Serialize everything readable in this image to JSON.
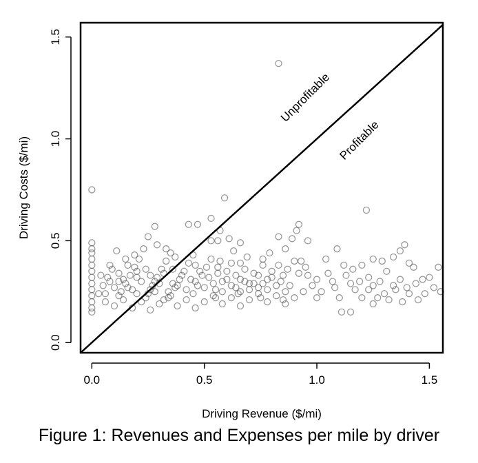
{
  "caption": "Figure 1: Revenues and Expenses per mile by driver",
  "chart_data": {
    "type": "scatter",
    "xlabel": "Driving Revenue ($/mi)",
    "ylabel": "Driving Costs ($/mi)",
    "xlim": [
      -0.05,
      1.56
    ],
    "ylim": [
      -0.05,
      1.57
    ],
    "xticks": [
      0.0,
      0.5,
      1.0,
      1.5
    ],
    "xtick_labels": [
      "0.0",
      "0.5",
      "1.0",
      "1.5"
    ],
    "yticks": [
      0.0,
      0.5,
      1.0,
      1.5
    ],
    "ytick_labels": [
      "0.0",
      "0.5",
      "1.0",
      "1.5"
    ],
    "grid": false,
    "marker": "open circle",
    "marker_color": "#555555",
    "reference_line": {
      "description": "y = x",
      "from": [
        -0.05,
        -0.05
      ],
      "to": [
        1.56,
        1.56
      ]
    },
    "annotations": [
      {
        "text": "Unprofitable",
        "x": 0.96,
        "y": 1.19,
        "rotation": -45
      },
      {
        "text": "Profitable",
        "x": 1.2,
        "y": 0.98,
        "rotation": -45
      }
    ],
    "points": [
      [
        0.83,
        1.37
      ],
      [
        0.0,
        0.75
      ],
      [
        0.59,
        0.71
      ],
      [
        1.22,
        0.65
      ],
      [
        0.28,
        0.57
      ],
      [
        0.43,
        0.58
      ],
      [
        0.47,
        0.58
      ],
      [
        0.53,
        0.61
      ],
      [
        0.57,
        0.55
      ],
      [
        0.92,
        0.58
      ],
      [
        0.91,
        0.55
      ],
      [
        0.89,
        0.51
      ],
      [
        0.83,
        0.52
      ],
      [
        0.96,
        0.5
      ],
      [
        0.53,
        0.5
      ],
      [
        0.61,
        0.51
      ],
      [
        0.56,
        0.5
      ],
      [
        0.66,
        0.49
      ],
      [
        0.25,
        0.52
      ],
      [
        0.0,
        0.49
      ],
      [
        0.0,
        0.46
      ],
      [
        0.0,
        0.44
      ],
      [
        0.0,
        0.41
      ],
      [
        0.0,
        0.38
      ],
      [
        0.0,
        0.35
      ],
      [
        0.0,
        0.32
      ],
      [
        0.0,
        0.29
      ],
      [
        0.0,
        0.26
      ],
      [
        0.0,
        0.23
      ],
      [
        0.0,
        0.2
      ],
      [
        0.0,
        0.17
      ],
      [
        0.0,
        0.15
      ],
      [
        1.09,
        0.46
      ],
      [
        1.39,
        0.48
      ],
      [
        1.37,
        0.45
      ],
      [
        1.34,
        0.42
      ],
      [
        1.41,
        0.39
      ],
      [
        1.29,
        0.4
      ],
      [
        1.43,
        0.37
      ],
      [
        1.25,
        0.41
      ],
      [
        1.2,
        0.38
      ],
      [
        1.16,
        0.36
      ],
      [
        1.12,
        0.38
      ],
      [
        1.04,
        0.41
      ],
      [
        1.05,
        0.34
      ],
      [
        1.0,
        0.31
      ],
      [
        0.98,
        0.28
      ],
      [
        1.08,
        0.27
      ],
      [
        1.02,
        0.25
      ],
      [
        1.0,
        0.22
      ],
      [
        1.1,
        0.22
      ],
      [
        1.11,
        0.15
      ],
      [
        1.15,
        0.15
      ],
      [
        1.17,
        0.26
      ],
      [
        1.2,
        0.22
      ],
      [
        1.23,
        0.26
      ],
      [
        1.25,
        0.19
      ],
      [
        1.27,
        0.22
      ],
      [
        1.3,
        0.24
      ],
      [
        1.32,
        0.21
      ],
      [
        1.35,
        0.26
      ],
      [
        1.38,
        0.2
      ],
      [
        1.41,
        0.24
      ],
      [
        1.45,
        0.21
      ],
      [
        1.48,
        0.24
      ],
      [
        1.52,
        0.27
      ],
      [
        1.55,
        0.25
      ],
      [
        1.54,
        0.37
      ],
      [
        1.5,
        0.32
      ],
      [
        1.47,
        0.31
      ],
      [
        1.44,
        0.29
      ],
      [
        1.4,
        0.27
      ],
      [
        1.37,
        0.31
      ],
      [
        1.34,
        0.28
      ],
      [
        1.31,
        0.35
      ],
      [
        1.28,
        0.3
      ],
      [
        1.25,
        0.28
      ],
      [
        1.23,
        0.32
      ],
      [
        1.19,
        0.3
      ],
      [
        1.15,
        0.29
      ],
      [
        1.13,
        0.33
      ],
      [
        1.07,
        0.3
      ],
      [
        0.95,
        0.37
      ],
      [
        0.92,
        0.34
      ],
      [
        0.93,
        0.4
      ],
      [
        0.9,
        0.4
      ],
      [
        0.87,
        0.36
      ],
      [
        0.85,
        0.33
      ],
      [
        0.83,
        0.38
      ],
      [
        0.8,
        0.35
      ],
      [
        0.78,
        0.31
      ],
      [
        0.76,
        0.38
      ],
      [
        0.74,
        0.33
      ],
      [
        0.72,
        0.29
      ],
      [
        0.7,
        0.26
      ],
      [
        0.68,
        0.36
      ],
      [
        0.66,
        0.31
      ],
      [
        0.64,
        0.27
      ],
      [
        0.62,
        0.39
      ],
      [
        0.6,
        0.35
      ],
      [
        0.58,
        0.3
      ],
      [
        0.55,
        0.26
      ],
      [
        0.53,
        0.41
      ],
      [
        0.51,
        0.37
      ],
      [
        0.49,
        0.33
      ],
      [
        0.47,
        0.28
      ],
      [
        0.45,
        0.43
      ],
      [
        0.43,
        0.39
      ],
      [
        0.41,
        0.35
      ],
      [
        0.39,
        0.31
      ],
      [
        0.37,
        0.27
      ],
      [
        0.35,
        0.44
      ],
      [
        0.33,
        0.4
      ],
      [
        0.31,
        0.36
      ],
      [
        0.29,
        0.32
      ],
      [
        0.27,
        0.28
      ],
      [
        0.25,
        0.24
      ],
      [
        0.23,
        0.46
      ],
      [
        0.21,
        0.41
      ],
      [
        0.19,
        0.37
      ],
      [
        0.17,
        0.33
      ],
      [
        0.15,
        0.29
      ],
      [
        0.13,
        0.25
      ],
      [
        0.11,
        0.45
      ],
      [
        0.09,
        0.36
      ],
      [
        0.07,
        0.32
      ],
      [
        0.05,
        0.28
      ],
      [
        0.03,
        0.24
      ],
      [
        0.06,
        0.2
      ],
      [
        0.1,
        0.18
      ],
      [
        0.14,
        0.21
      ],
      [
        0.18,
        0.17
      ],
      [
        0.22,
        0.2
      ],
      [
        0.26,
        0.16
      ],
      [
        0.3,
        0.19
      ],
      [
        0.34,
        0.22
      ],
      [
        0.38,
        0.18
      ],
      [
        0.42,
        0.21
      ],
      [
        0.46,
        0.17
      ],
      [
        0.5,
        0.2
      ],
      [
        0.54,
        0.23
      ],
      [
        0.58,
        0.19
      ],
      [
        0.62,
        0.22
      ],
      [
        0.66,
        0.18
      ],
      [
        0.7,
        0.21
      ],
      [
        0.74,
        0.24
      ],
      [
        0.78,
        0.2
      ],
      [
        0.82,
        0.23
      ],
      [
        0.86,
        0.19
      ],
      [
        0.9,
        0.22
      ],
      [
        0.94,
        0.25
      ],
      [
        0.08,
        0.3
      ],
      [
        0.12,
        0.34
      ],
      [
        0.16,
        0.38
      ],
      [
        0.2,
        0.32
      ],
      [
        0.24,
        0.36
      ],
      [
        0.28,
        0.3
      ],
      [
        0.32,
        0.34
      ],
      [
        0.36,
        0.29
      ],
      [
        0.4,
        0.33
      ],
      [
        0.44,
        0.31
      ],
      [
        0.48,
        0.35
      ],
      [
        0.52,
        0.32
      ],
      [
        0.56,
        0.34
      ],
      [
        0.6,
        0.31
      ],
      [
        0.64,
        0.33
      ],
      [
        0.68,
        0.3
      ],
      [
        0.72,
        0.34
      ],
      [
        0.76,
        0.29
      ],
      [
        0.8,
        0.32
      ],
      [
        0.84,
        0.3
      ],
      [
        0.88,
        0.28
      ],
      [
        0.1,
        0.27
      ],
      [
        0.14,
        0.31
      ],
      [
        0.18,
        0.26
      ],
      [
        0.22,
        0.3
      ],
      [
        0.26,
        0.26
      ],
      [
        0.3,
        0.29
      ],
      [
        0.34,
        0.25
      ],
      [
        0.38,
        0.28
      ],
      [
        0.42,
        0.26
      ],
      [
        0.46,
        0.3
      ],
      [
        0.5,
        0.27
      ],
      [
        0.54,
        0.29
      ],
      [
        0.58,
        0.25
      ],
      [
        0.62,
        0.28
      ],
      [
        0.66,
        0.25
      ],
      [
        0.7,
        0.29
      ],
      [
        0.74,
        0.27
      ],
      [
        0.78,
        0.26
      ],
      [
        0.82,
        0.28
      ],
      [
        0.86,
        0.25
      ],
      [
        0.15,
        0.41
      ],
      [
        0.19,
        0.43
      ],
      [
        0.29,
        0.48
      ],
      [
        0.33,
        0.46
      ],
      [
        0.37,
        0.42
      ],
      [
        0.57,
        0.4
      ],
      [
        0.63,
        0.45
      ],
      [
        0.69,
        0.42
      ],
      [
        0.79,
        0.44
      ],
      [
        0.86,
        0.46
      ],
      [
        0.35,
        0.23
      ],
      [
        0.45,
        0.24
      ],
      [
        0.55,
        0.22
      ],
      [
        0.65,
        0.24
      ],
      [
        0.75,
        0.22
      ],
      [
        0.85,
        0.21
      ],
      [
        0.12,
        0.23
      ],
      [
        0.2,
        0.24
      ],
      [
        0.24,
        0.22
      ],
      [
        0.28,
        0.25
      ],
      [
        0.32,
        0.21
      ],
      [
        0.04,
        0.33
      ],
      [
        0.08,
        0.38
      ],
      [
        0.06,
        0.24
      ],
      [
        0.16,
        0.27
      ],
      [
        0.12,
        0.3
      ],
      [
        0.2,
        0.35
      ],
      [
        0.26,
        0.33
      ],
      [
        0.36,
        0.36
      ],
      [
        0.46,
        0.38
      ],
      [
        0.56,
        0.37
      ],
      [
        0.66,
        0.39
      ],
      [
        0.76,
        0.41
      ],
      [
        0.96,
        0.33
      ]
    ]
  }
}
